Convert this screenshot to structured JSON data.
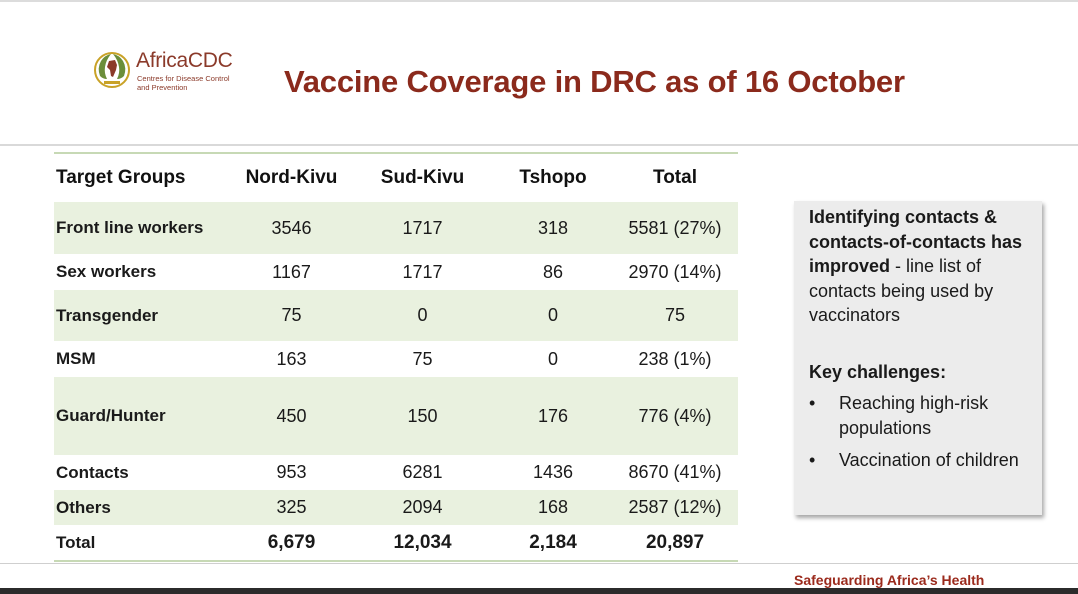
{
  "logo": {
    "name": "AfricaCDC",
    "subtitle_line1": "Centres for Disease Control",
    "subtitle_line2": "and Prevention"
  },
  "title": "Vaccine Coverage in DRC as of 16 October",
  "table": {
    "headers": [
      "Target Groups",
      "Nord-Kivu",
      "Sud-Kivu",
      "Tshopo",
      "Total"
    ],
    "rows": [
      {
        "group": "Front line workers",
        "nord_kivu": "3546",
        "sud_kivu": "1717",
        "tshopo": "318",
        "total": "5581 (27%)"
      },
      {
        "group": "Sex workers",
        "nord_kivu": "1167",
        "sud_kivu": "1717",
        "tshopo": "86",
        "total": "2970 (14%)"
      },
      {
        "group": "Transgender",
        "nord_kivu": "75",
        "sud_kivu": "0",
        "tshopo": "0",
        "total": "75"
      },
      {
        "group": "MSM",
        "nord_kivu": "163",
        "sud_kivu": "75",
        "tshopo": "0",
        "total": "238 (1%)"
      },
      {
        "group": "Guard/Hunter",
        "nord_kivu": "450",
        "sud_kivu": "150",
        "tshopo": "176",
        "total": "776 (4%)"
      },
      {
        "group": "Contacts",
        "nord_kivu": "953",
        "sud_kivu": "6281",
        "tshopo": "1436",
        "total": "8670 (41%)"
      },
      {
        "group": "Others",
        "nord_kivu": "325",
        "sud_kivu": "2094",
        "tshopo": "168",
        "total": "2587 (12%)"
      },
      {
        "group": "Total",
        "nord_kivu": "6,679",
        "sud_kivu": "12,034",
        "tshopo": "2,184",
        "total": "20,897"
      }
    ]
  },
  "callout": {
    "bold_text": "Identifying contacts & contacts-of-contacts has improved",
    "normal_text": " - line list of contacts being used by vaccinators",
    "challenges_heading": "Key challenges:",
    "bullet_symbol": "•",
    "challenges": [
      "Reaching high-risk populations",
      "Vaccination of children"
    ]
  },
  "footer": "Safeguarding Africa’s Health",
  "colors": {
    "title": "#8b2a1c",
    "row_shade": "#e9f1df",
    "table_rule": "#c7d9b5",
    "callout_bg": "#ececec",
    "footer": "#9b2a1c"
  }
}
